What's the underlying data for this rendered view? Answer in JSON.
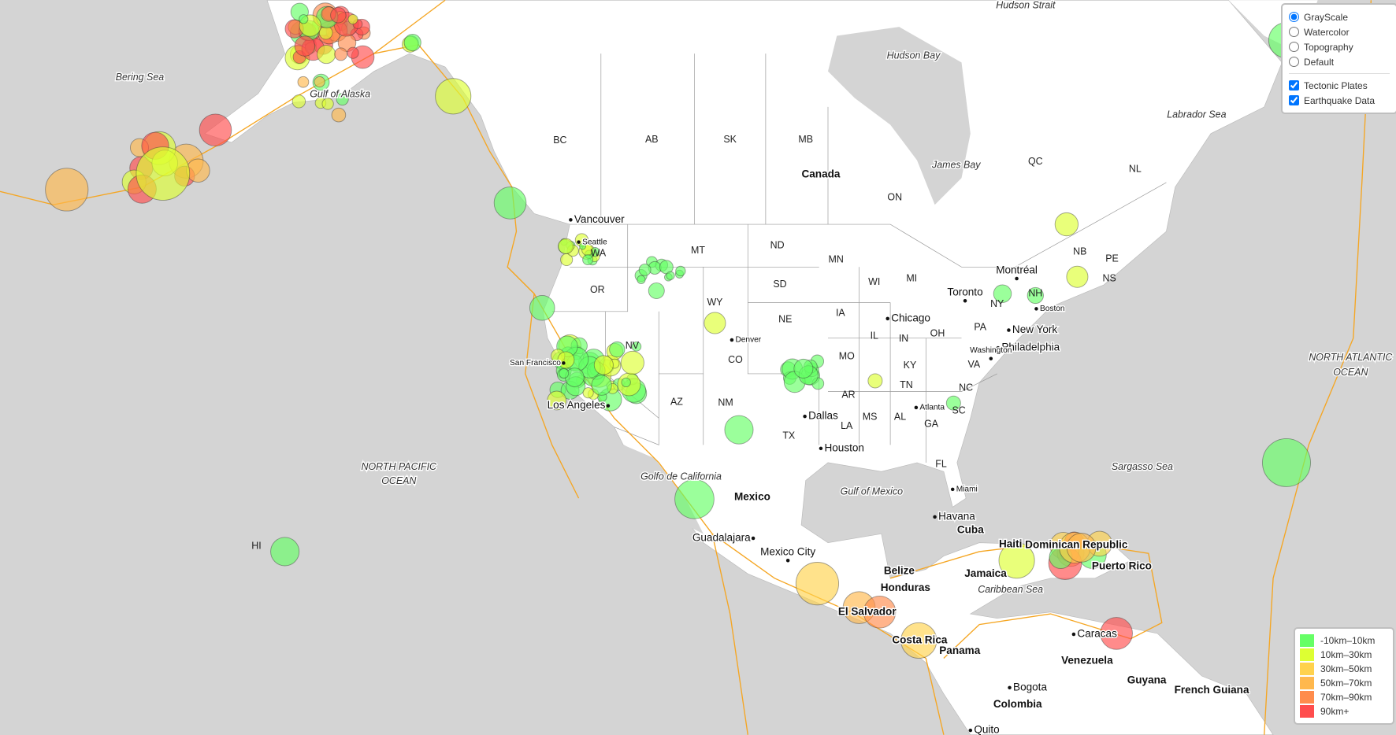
{
  "layer_control": {
    "base_layers": [
      {
        "label": "GrayScale",
        "checked": true
      },
      {
        "label": "Watercolor",
        "checked": false
      },
      {
        "label": "Topography",
        "checked": false
      },
      {
        "label": "Default",
        "checked": false
      }
    ],
    "overlays": [
      {
        "label": "Tectonic Plates",
        "checked": true
      },
      {
        "label": "Earthquake Data",
        "checked": true
      }
    ]
  },
  "legend": {
    "items": [
      {
        "label": "-10km–10km",
        "color": "#66ff66"
      },
      {
        "label": "10km–30km",
        "color": "#ddff33"
      },
      {
        "label": "30km–50km",
        "color": "#ffd24d"
      },
      {
        "label": "50km–70km",
        "color": "#ffb84d"
      },
      {
        "label": "70km–90km",
        "color": "#ff8c4d"
      },
      {
        "label": "90km+",
        "color": "#ff4d4d"
      }
    ]
  },
  "map": {
    "labels": [
      "Hudson Strait",
      "Hudson Bay",
      "Bering Sea",
      "Gulf of Alaska",
      "Labrador Sea",
      "James Bay",
      "NORTH PACIFIC",
      "OCEAN",
      "NORTH ATLANTIC",
      "OCEAN",
      "Sargasso Sea",
      "Gulf of Mexico",
      "Golfo de California",
      "Caribbean  Sea",
      "BC",
      "AB",
      "SK",
      "MB",
      "ON",
      "QC",
      "NL",
      "NB",
      "PE",
      "NS",
      "Canada",
      "WA",
      "OR",
      "MT",
      "ND",
      "SD",
      "WY",
      "NE",
      "NV",
      "CO",
      "AZ",
      "NM",
      "TX",
      "IA",
      "MN",
      "WI",
      "MI",
      "IL",
      "IN",
      "OH",
      "PA",
      "NY",
      "KY",
      "MO",
      "AR",
      "LA",
      "MS",
      "AL",
      "GA",
      "TN",
      "NC",
      "SC",
      "VA",
      "FL",
      "NH",
      "HI",
      "Vancouver",
      "Seattle",
      "San Francisco",
      "Los Angeles",
      "Denver",
      "Dallas",
      "Houston",
      "Chicago",
      "Toronto",
      "Montréal",
      "Boston",
      "New York",
      "Philadelphia",
      "Washington",
      "Atlanta",
      "Miami",
      "Havana",
      "Guadalajara",
      "Mexico City",
      "Caracas",
      "Bogota",
      "Quito",
      "Mexico",
      "Cuba",
      "Haiti",
      "Belize",
      "Honduras",
      "Jamaica",
      "El Salvador",
      "Costa Rica",
      "Panama",
      "Venezuela",
      "Guyana",
      "French Guiana",
      "Colombia",
      "Puerto Rico",
      "Dominican Republic"
    ]
  }
}
